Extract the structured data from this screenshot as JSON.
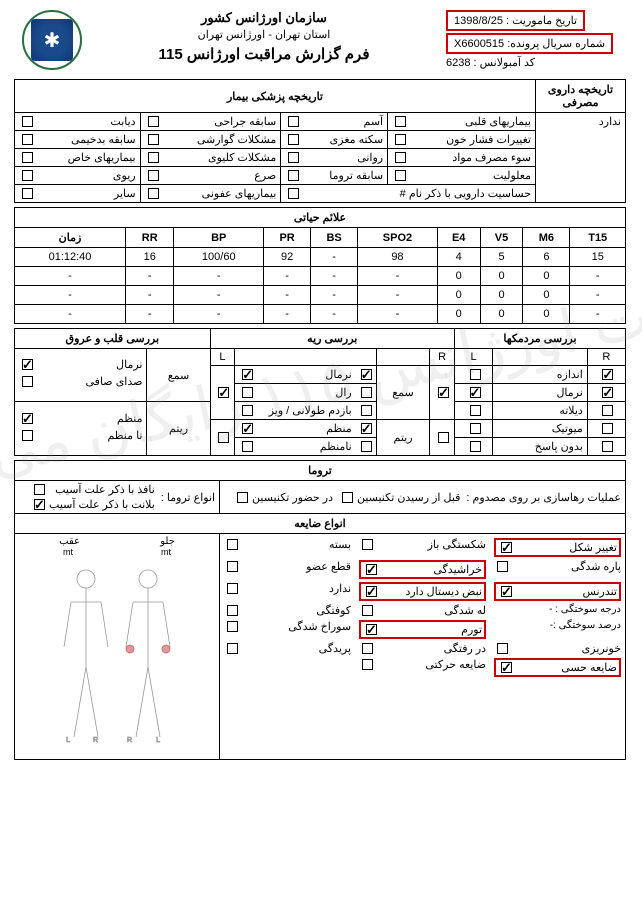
{
  "header": {
    "org": "سازمان اورژانس کشور",
    "province": "استان تهران - اورژانس تهران",
    "form_title": "فرم گزارش مراقبت اورژانس 115",
    "mission_date_label": "تاریخ ماموریت :",
    "mission_date": "1398/8/25",
    "case_serial_label": "شماره سریال پرونده:",
    "case_serial": "X6600515",
    "ambulance_code_label": "کد آمبولانس :",
    "ambulance_code": "6238"
  },
  "watermark": "خدمات اورژانس ۱۱۵ رایگان می‌باشد",
  "hx": {
    "drug_hx_title": "تاریخچه داروی مصرفی",
    "drug_hx_value": "ندارد",
    "med_hx_title": "تاریخچه پزشکی بیمار",
    "items": [
      [
        {
          "l": "بیماریهای قلبی",
          "c": false
        },
        {
          "l": "آسم",
          "c": false
        },
        {
          "l": "سابقه جراحی",
          "c": false
        },
        {
          "l": "دیابت",
          "c": false
        }
      ],
      [
        {
          "l": "تغییرات فشار خون",
          "c": false
        },
        {
          "l": "سکته مغزی",
          "c": false
        },
        {
          "l": "مشکلات گوارشی",
          "c": false
        },
        {
          "l": "سابقه بدخیمی",
          "c": false
        }
      ],
      [
        {
          "l": "سوء مصرف مواد",
          "c": false
        },
        {
          "l": "روانی",
          "c": false
        },
        {
          "l": "مشکلات کلیوی",
          "c": false
        },
        {
          "l": "بیماریهای خاص",
          "c": false
        }
      ],
      [
        {
          "l": "معلولیت",
          "c": false
        },
        {
          "l": "سابقه تروما",
          "c": false
        },
        {
          "l": "صرع",
          "c": false
        },
        {
          "l": "ریوی",
          "c": false
        }
      ],
      [
        {
          "l": "حساسیت دارویی با ذکر نام   #",
          "c": false,
          "span": 2
        },
        {
          "l": "بیماریهای عفونی",
          "c": false
        },
        {
          "l": "سایر",
          "c": false
        }
      ]
    ]
  },
  "vitals": {
    "title": "علائم حیاتی",
    "cols": [
      "T15",
      "M6",
      "V5",
      "E4",
      "SPO2",
      "BS",
      "PR",
      "BP",
      "RR",
      "زمان"
    ],
    "rows": [
      [
        "15",
        "6",
        "5",
        "4",
        "98",
        "-",
        "92",
        "100/60",
        "16",
        "01:12:40"
      ],
      [
        "-",
        "0",
        "0",
        "0",
        "-",
        "-",
        "-",
        "-",
        "-",
        "-"
      ],
      [
        "-",
        "0",
        "0",
        "0",
        "-",
        "-",
        "-",
        "-",
        "-",
        "-"
      ],
      [
        "-",
        "0",
        "0",
        "0",
        "-",
        "-",
        "-",
        "-",
        "-",
        "-"
      ]
    ]
  },
  "exam": {
    "pupils_title": "بررسی مردمکها",
    "pupils": [
      {
        "l": "اندازه",
        "R": true,
        "L": false
      },
      {
        "l": "نرمال",
        "R": true,
        "L": true
      },
      {
        "l": "دیلاته",
        "R": false,
        "L": false
      },
      {
        "l": "میوتیک",
        "R": false,
        "L": false
      },
      {
        "l": "بدون پاسخ",
        "R": false,
        "L": false
      }
    ],
    "lung_title": "بررسی ریه",
    "lung_hear": {
      "label": "سمع",
      "R": true,
      "L": true
    },
    "lung_rhythm": {
      "label": "ریتم",
      "R": false,
      "L": false
    },
    "lung_items": [
      {
        "l": "نرمال",
        "R": true,
        "L": true
      },
      {
        "l": "رال",
        "R": false,
        "L": false
      },
      {
        "l": "بازدم طولانی / ویز",
        "R": false,
        "L": false
      },
      {
        "l": "منظم",
        "R": true,
        "L": true
      },
      {
        "l": "نامنظم",
        "R": false,
        "L": false
      }
    ],
    "heart_title": "بررسی قلب و عروق",
    "heart_hear": {
      "label": "سمع",
      "items": [
        {
          "l": "نرمال",
          "c": true
        },
        {
          "l": "صدای صافی",
          "c": false
        }
      ]
    },
    "heart_rhythm": {
      "label": "ریتم",
      "items": [
        {
          "l": "منظم",
          "c": true
        },
        {
          "l": "نا منظم",
          "c": false
        }
      ]
    }
  },
  "trauma": {
    "title": "تروما",
    "release_label": "عملیات رهاسازی بر روی مصدوم :",
    "release_items": [
      {
        "l": "قبل از رسیدن تکنیسین",
        "c": false
      },
      {
        "l": "در حضور تکنیسین",
        "c": false
      }
    ],
    "types_label": "انواع تروما :",
    "types_items": [
      {
        "l": "نافذ با ذکر علت آسیب",
        "c": false
      },
      {
        "l": "بلانت با ذکر علت آسیب",
        "c": true
      }
    ],
    "lesion_title": "انواع ضایعه",
    "lesion_items": [
      {
        "l": "تغییر شکل",
        "c": true,
        "red": true
      },
      {
        "l": "شکستگی  باز",
        "c": false
      },
      {
        "l": "بسته",
        "c": false
      },
      {
        "l": "پاره شدگی",
        "c": false
      },
      {
        "l": "خراشیدگی",
        "c": true,
        "red": true
      },
      {
        "l": "قطع عضو",
        "c": false
      },
      {
        "l": "تندرنس",
        "c": true,
        "red": true
      },
      {
        "l": "نبض دیستال دارد",
        "c": true,
        "red": true
      },
      {
        "l": "ندارد",
        "c": false
      },
      {
        "l": "درجه سوختگی : -",
        "c": false,
        "plain": true
      },
      {
        "l": "له شدگی",
        "c": false
      },
      {
        "l": "کوفتگی",
        "c": false
      },
      {
        "l": "درصد سوختگی :-",
        "c": false,
        "plain": true
      },
      {
        "l": "تورم",
        "c": true,
        "red": true
      },
      {
        "l": "سوراخ شدگی",
        "c": false
      },
      {
        "l": "خونریزی",
        "c": false
      },
      {
        "l": "در رفتگی",
        "c": false
      },
      {
        "l": "پریدگی",
        "c": false
      },
      {
        "l": "ضایعه حسی",
        "c": true,
        "red": true
      },
      {
        "l": "ضایعه حرکتی",
        "c": false
      }
    ],
    "diagram_front": "جلو",
    "diagram_back": "عقب",
    "diagram_unit": "mt"
  },
  "colors": {
    "red": "#c00",
    "border": "#000",
    "logo_green": "#2a6e3f",
    "logo_blue": "#1a4a8a"
  }
}
